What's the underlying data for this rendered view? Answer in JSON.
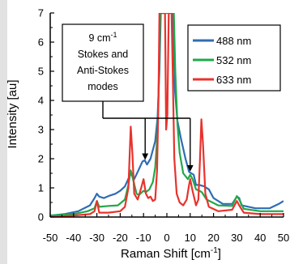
{
  "chart_data": {
    "type": "line",
    "xlabel": "Raman Shift [cm",
    "xlabel_sup": "-1",
    "xlabel_tail": "]",
    "ylabel": "Intensity [au]",
    "xlim": [
      -50,
      50
    ],
    "ylim": [
      0,
      7
    ],
    "x_ticks": [
      -50,
      -40,
      -30,
      -20,
      -10,
      0,
      10,
      20,
      30,
      40,
      50
    ],
    "y_ticks": [
      0,
      1,
      2,
      3,
      4,
      5,
      6,
      7
    ],
    "grid": false,
    "legend_position": "top-right",
    "annotation": {
      "line1_main": "9 cm",
      "line1_sup": "-1",
      "line2": "Stokes and",
      "line3": "Anti-Stokes",
      "line4": "modes",
      "arrow_targets": [
        [
          -10,
          1.85
        ],
        [
          10,
          1.45
        ]
      ]
    },
    "series": [
      {
        "name": "488 nm",
        "color": "#2e6db4",
        "points": [
          [
            -50,
            0.05
          ],
          [
            -44,
            0.1
          ],
          [
            -38,
            0.2
          ],
          [
            -33,
            0.4
          ],
          [
            -31,
            0.65
          ],
          [
            -30,
            0.8
          ],
          [
            -29,
            0.7
          ],
          [
            -27,
            0.65
          ],
          [
            -25,
            0.72
          ],
          [
            -22,
            0.8
          ],
          [
            -20,
            0.9
          ],
          [
            -18,
            1.05
          ],
          [
            -16,
            1.4
          ],
          [
            -15,
            1.5
          ],
          [
            -14,
            1.3
          ],
          [
            -12.5,
            1.55
          ],
          [
            -10.5,
            1.9
          ],
          [
            -9.5,
            1.95
          ],
          [
            -8.5,
            1.8
          ],
          [
            -7,
            2.0
          ],
          [
            -5,
            2.6
          ],
          [
            -4,
            3.4
          ],
          [
            -3.2,
            5.0
          ],
          [
            -2.6,
            7.0
          ],
          [
            2.6,
            7.0
          ],
          [
            3.4,
            4.4
          ],
          [
            4.5,
            3.3
          ],
          [
            6,
            2.7
          ],
          [
            8,
            2.0
          ],
          [
            9.5,
            1.55
          ],
          [
            10.5,
            1.5
          ],
          [
            11.5,
            1.45
          ],
          [
            12.5,
            1.1
          ],
          [
            14,
            1.1
          ],
          [
            16,
            1.05
          ],
          [
            18,
            0.95
          ],
          [
            20,
            0.65
          ],
          [
            24,
            0.45
          ],
          [
            28,
            0.45
          ],
          [
            30,
            0.7
          ],
          [
            31,
            0.65
          ],
          [
            32,
            0.4
          ],
          [
            38,
            0.3
          ],
          [
            44,
            0.3
          ],
          [
            48,
            0.45
          ],
          [
            50,
            0.55
          ]
        ]
      },
      {
        "name": "532 nm",
        "color": "#22a84a",
        "points": [
          [
            -50,
            0.05
          ],
          [
            -40,
            0.1
          ],
          [
            -34,
            0.2
          ],
          [
            -31,
            0.3
          ],
          [
            -30,
            0.55
          ],
          [
            -29,
            0.35
          ],
          [
            -25,
            0.38
          ],
          [
            -21,
            0.4
          ],
          [
            -18,
            0.6
          ],
          [
            -16.5,
            1.1
          ],
          [
            -15.5,
            1.6
          ],
          [
            -14.5,
            1.3
          ],
          [
            -13,
            0.8
          ],
          [
            -12,
            0.75
          ],
          [
            -10,
            0.9
          ],
          [
            -9,
            0.85
          ],
          [
            -7.5,
            0.95
          ],
          [
            -6,
            1.2
          ],
          [
            -5,
            1.7
          ],
          [
            -4,
            2.9
          ],
          [
            -3.2,
            5.5
          ],
          [
            -2.8,
            7.0
          ],
          [
            3.0,
            7.0
          ],
          [
            3.6,
            5.0
          ],
          [
            4.5,
            3.2
          ],
          [
            5.5,
            2.2
          ],
          [
            7,
            1.5
          ],
          [
            9,
            1.3
          ],
          [
            10,
            1.45
          ],
          [
            11,
            1.3
          ],
          [
            12.5,
            0.95
          ],
          [
            14,
            0.9
          ],
          [
            15,
            0.85
          ],
          [
            17,
            0.6
          ],
          [
            22,
            0.4
          ],
          [
            28,
            0.38
          ],
          [
            30,
            0.72
          ],
          [
            31,
            0.6
          ],
          [
            33,
            0.28
          ],
          [
            40,
            0.2
          ],
          [
            46,
            0.2
          ],
          [
            50,
            0.2
          ]
        ]
      },
      {
        "name": "633 nm",
        "color": "#e8332d",
        "points": [
          [
            -50,
            0.0
          ],
          [
            -40,
            0.05
          ],
          [
            -33,
            0.1
          ],
          [
            -31,
            0.2
          ],
          [
            -30,
            0.55
          ],
          [
            -29,
            0.15
          ],
          [
            -25,
            0.15
          ],
          [
            -20,
            0.2
          ],
          [
            -18,
            0.35
          ],
          [
            -16.5,
            1.0
          ],
          [
            -15.5,
            3.1
          ],
          [
            -14.8,
            2.2
          ],
          [
            -14,
            0.8
          ],
          [
            -12.5,
            0.6
          ],
          [
            -11,
            1.0
          ],
          [
            -10,
            1.3
          ],
          [
            -9,
            0.8
          ],
          [
            -8,
            0.65
          ],
          [
            -7,
            0.7
          ],
          [
            -6,
            0.55
          ],
          [
            -5,
            0.6
          ],
          [
            -4.2,
            1.6
          ],
          [
            -3.6,
            4.0
          ],
          [
            -3.2,
            7.0
          ],
          [
            -0.8,
            7.0
          ],
          [
            -0.3,
            3.0
          ],
          [
            0.2,
            3.5
          ],
          [
            0.8,
            7.0
          ],
          [
            2.0,
            7.0
          ],
          [
            2.5,
            5.0
          ],
          [
            3.2,
            2.0
          ],
          [
            4.2,
            0.8
          ],
          [
            5.5,
            0.5
          ],
          [
            7,
            0.4
          ],
          [
            8.5,
            0.6
          ],
          [
            9.5,
            1.1
          ],
          [
            10,
            1.3
          ],
          [
            11,
            0.9
          ],
          [
            12.5,
            0.4
          ],
          [
            13.5,
            0.6
          ],
          [
            14.2,
            2.0
          ],
          [
            14.8,
            3.35
          ],
          [
            15.5,
            2.5
          ],
          [
            16.5,
            0.8
          ],
          [
            18,
            0.35
          ],
          [
            22,
            0.2
          ],
          [
            28,
            0.25
          ],
          [
            30,
            0.55
          ],
          [
            31,
            0.4
          ],
          [
            33,
            0.15
          ],
          [
            40,
            0.1
          ],
          [
            46,
            0.1
          ],
          [
            50,
            0.1
          ]
        ]
      }
    ]
  }
}
